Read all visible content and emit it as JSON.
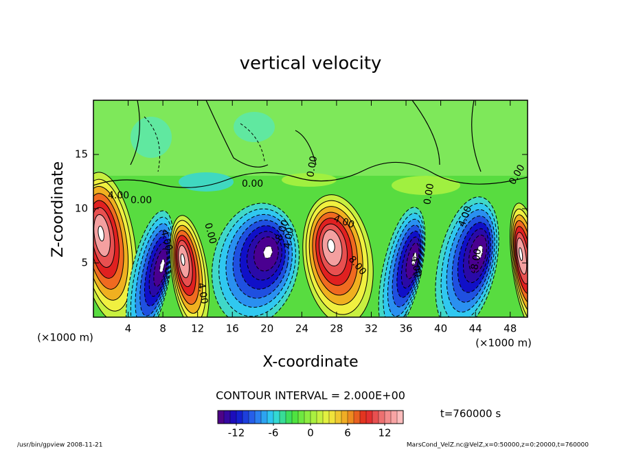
{
  "chart_data": {
    "type": "contour",
    "title": "vertical velocity",
    "x_label": "X-coordinate",
    "y_label": "Z-coordinate",
    "x_unit": "(×1000 m)",
    "y_unit": "(×1000 m)",
    "xlim": [
      0,
      50
    ],
    "ylim": [
      0,
      20
    ],
    "xticks": [
      4,
      8,
      12,
      16,
      20,
      24,
      28,
      32,
      36,
      40,
      44,
      48
    ],
    "yticks": [
      5,
      10,
      15
    ],
    "contour_interval": "CONTOUR INTERVAL = 2.000E+00",
    "contour_labels": [
      "4.00",
      "0.00",
      "4.00",
      "0.00",
      "0.00",
      "4.00",
      "4.00",
      "-8.00",
      "4.00",
      "8.00",
      "0.00",
      "-4.00",
      "0.00",
      "4.00",
      "-8.00",
      "0.00"
    ],
    "colorbar_lim": [
      -15,
      15
    ],
    "colorbar_ticks": [
      -12,
      -6,
      0,
      6,
      12
    ],
    "time_label": "t=760000 s",
    "footer_left": "/usr/bin/gpview  2008-11-21",
    "footer_right": "MarsCond_VelZ.nc@VelZ,x=0:50000,z=0:20000,t=760000"
  }
}
